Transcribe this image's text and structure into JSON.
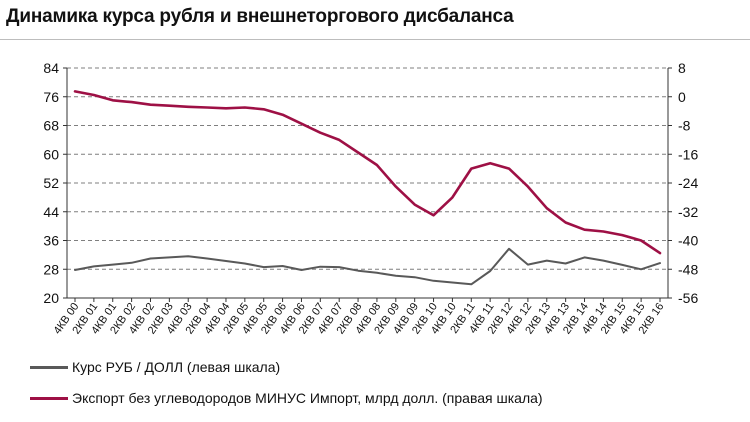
{
  "chart_data": {
    "type": "line",
    "title": "Динамика курса рубля и внешнеторгового дисбаланса",
    "categories": [
      "4КВ 00",
      "2КВ 01",
      "4КВ 01",
      "2КВ 02",
      "4КВ 02",
      "2КВ 03",
      "4КВ 03",
      "2КВ 04",
      "4КВ 04",
      "2КВ 05",
      "4КВ 05",
      "2КВ 06",
      "4КВ 06",
      "2КВ 07",
      "4КВ 07",
      "2КВ 08",
      "4КВ 08",
      "2КВ 09",
      "4КВ 09",
      "2КВ 10",
      "4КВ 10",
      "2КВ 11",
      "4КВ 11",
      "2КВ 12",
      "4КВ 12",
      "2КВ 13",
      "4КВ 13",
      "2КВ 14",
      "4КВ 14",
      "2КВ 15",
      "4КВ 15",
      "2КВ 16"
    ],
    "y_left": {
      "range": [
        20,
        84
      ],
      "ticks": [
        "84",
        "76",
        "68",
        "60",
        "52",
        "44",
        "36",
        "28",
        "20"
      ]
    },
    "y_right": {
      "range": [
        -56,
        8
      ],
      "ticks": [
        "8",
        "0",
        "-8",
        "-16",
        "-24",
        "-32",
        "-40",
        "-48",
        "-56"
      ]
    },
    "grid": "horizontal-dashed",
    "legend_position": "bottom-left",
    "series": [
      {
        "name": "Курс РУБ / ДОЛЛ (левая шкала)",
        "axis": "left",
        "color": "#595959",
        "values": [
          27.8,
          28.8,
          29.3,
          29.8,
          31.0,
          31.3,
          31.6,
          31.0,
          30.3,
          29.6,
          28.6,
          28.9,
          27.8,
          28.7,
          28.6,
          27.6,
          27.0,
          26.2,
          25.8,
          24.8,
          24.3,
          23.8,
          27.5,
          33.7,
          29.3,
          30.4,
          29.6,
          31.3,
          30.4,
          29.2,
          28.0,
          29.7
        ]
      },
      {
        "name": "Экспорт без углеводородов МИНУС Импорт, млрд долл. (правая шкала)",
        "axis": "right",
        "color": "#9e1045",
        "values": [
          1.5,
          0.5,
          -1.0,
          -1.5,
          -2.2,
          -2.5,
          -2.8,
          -3.0,
          -3.2,
          -3.0,
          -3.5,
          -5.0,
          -7.5,
          -10.0,
          -12.0,
          -15.5,
          -19.0,
          -25.0,
          -30.0,
          -33.0,
          -28.0,
          -20.0,
          -18.5,
          -20.0,
          -25.0,
          -31.0,
          -35.0,
          -37.0,
          -37.5,
          -38.5,
          -40.0,
          -43.5
        ]
      }
    ]
  }
}
